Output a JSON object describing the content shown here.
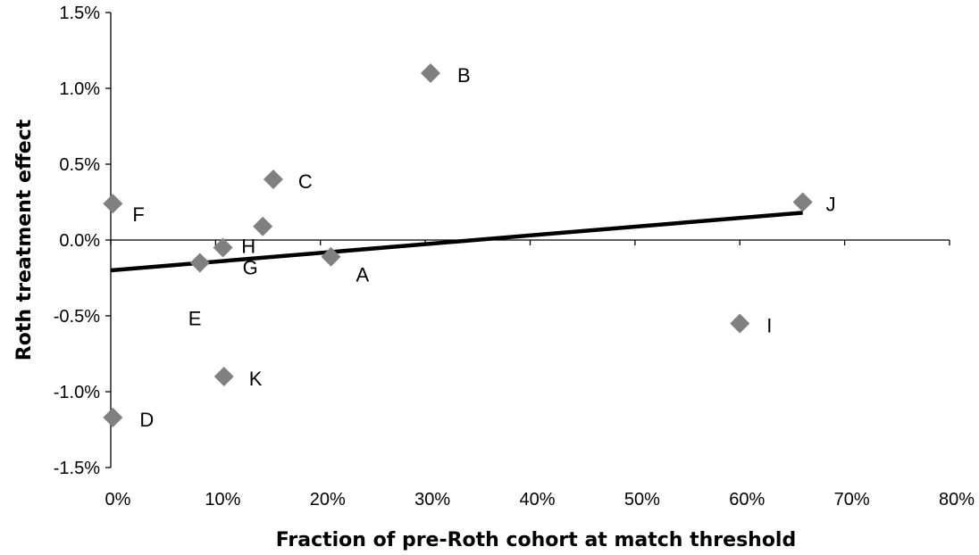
{
  "chart_data": {
    "type": "scatter",
    "title": "",
    "xlabel": "Fraction of pre-Roth cohort at match threshold",
    "ylabel": "Roth treatment effect",
    "xlim": [
      0,
      0.8
    ],
    "ylim": [
      -0.015,
      0.015
    ],
    "x_ticks": [
      0,
      0.1,
      0.2,
      0.3,
      0.4,
      0.5,
      0.6,
      0.7,
      0.8
    ],
    "y_ticks": [
      -0.015,
      -0.01,
      -0.005,
      0,
      0.005,
      0.01,
      0.015
    ],
    "x_tick_labels": [
      "0%",
      "10%",
      "20%",
      "30%",
      "40%",
      "50%",
      "60%",
      "70%",
      "80%"
    ],
    "y_tick_labels": [
      "-1.5%",
      "-1.0%",
      "-0.5%",
      "0.0%",
      "0.5%",
      "1.0%",
      "1.5%"
    ],
    "grid": false,
    "marker": "diamond",
    "colors": {
      "marker": "#808080",
      "fit_line": "#000000",
      "axis": "#000000"
    },
    "points": [
      {
        "label": "A",
        "x": 0.21,
        "y": -0.0011
      },
      {
        "label": "B",
        "x": 0.305,
        "y": 0.011
      },
      {
        "label": "C",
        "x": 0.155,
        "y": 0.004
      },
      {
        "label": "D",
        "x": 0.002,
        "y": -0.0117
      },
      {
        "label": "E",
        "x": 0.085,
        "y": -0.0015
      },
      {
        "label": "F",
        "x": 0.002,
        "y": 0.0024
      },
      {
        "label": "G",
        "x": 0.107,
        "y": -0.0005
      },
      {
        "label": "H",
        "x": 0.145,
        "y": 0.0009
      },
      {
        "label": "I",
        "x": 0.6,
        "y": -0.0055
      },
      {
        "label": "J",
        "x": 0.66,
        "y": 0.0025
      },
      {
        "label": "K",
        "x": 0.108,
        "y": -0.009
      }
    ],
    "fit_line": {
      "x": [
        0,
        0.66
      ],
      "y": [
        -0.002,
        0.0018
      ]
    }
  }
}
